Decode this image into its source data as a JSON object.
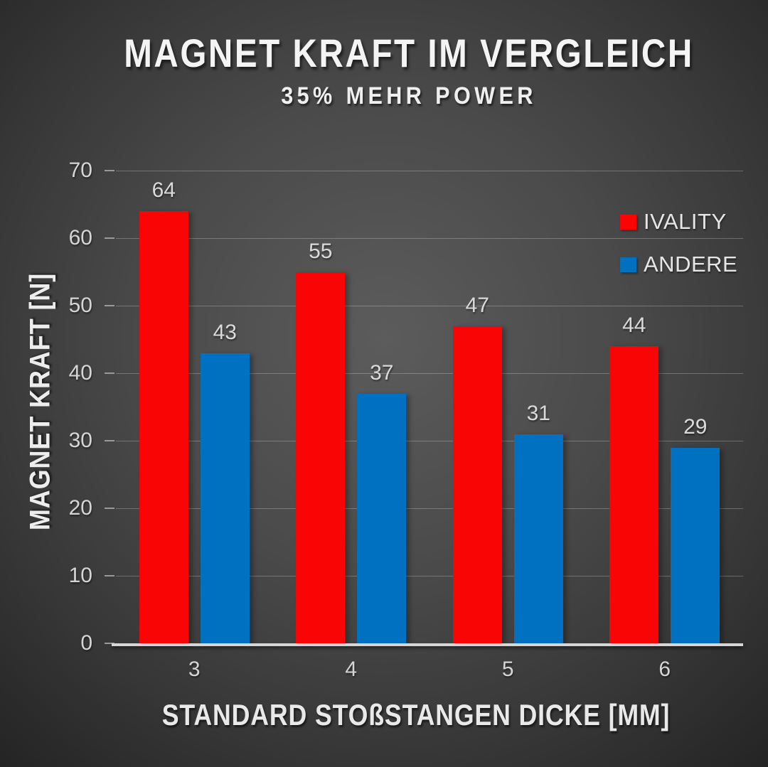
{
  "title": "MAGNET KRAFT IM VERGLEICH",
  "subtitle": "35% MEHR POWER",
  "chart_data": {
    "type": "bar",
    "categories": [
      "3",
      "4",
      "5",
      "6"
    ],
    "series": [
      {
        "name": "IVALITY",
        "color": "#FA0505",
        "values": [
          64,
          55,
          47,
          44
        ]
      },
      {
        "name": "ANDERE",
        "color": "#0070C0",
        "values": [
          43,
          37,
          31,
          29
        ]
      }
    ],
    "title": "MAGNET KRAFT IM VERGLEICH",
    "subtitle": "35% MEHR POWER",
    "xlabel": "STANDARD STOßSTANGEN DICKE [MM]",
    "ylabel": "MAGNET KRAFT [N]",
    "ylim": [
      0,
      70
    ],
    "yticks": [
      0,
      10,
      20,
      30,
      40,
      50,
      60,
      70
    ],
    "grid": true,
    "legend_position": "top-right"
  },
  "colors": {
    "background_center": "#5c5c5c",
    "background_edge": "#1e1e1e",
    "gridline": "rgba(255,255,255,0.25)",
    "axis_line": "#d6d6d6",
    "title_text": "#f4f4f4",
    "tick_text": "#d5d5d5",
    "label_text": "#dadada",
    "legend_text": "#e6e6e6",
    "series_red": "#FA0505",
    "series_blue": "#0070C0"
  }
}
